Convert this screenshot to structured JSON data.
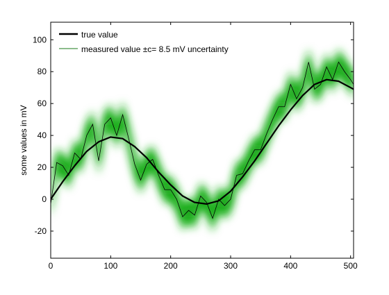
{
  "chart_data": {
    "type": "line",
    "title": "",
    "xlabel": "",
    "ylabel": "some values in mV",
    "xlim": [
      0,
      505
    ],
    "ylim": [
      -37,
      111
    ],
    "xticks": [
      0,
      100,
      200,
      300,
      400,
      500
    ],
    "yticks": [
      -20,
      0,
      20,
      40,
      60,
      80,
      100
    ],
    "grid": false,
    "legend_position": "top-left",
    "uncertainty_c": 8.5,
    "series": [
      {
        "name": "true value",
        "color": "#000000",
        "style": "thick-line",
        "x": [
          0,
          20,
          40,
          60,
          80,
          100,
          120,
          140,
          160,
          180,
          200,
          220,
          240,
          260,
          280,
          300,
          320,
          340,
          360,
          380,
          400,
          420,
          440,
          460,
          480,
          500,
          505
        ],
        "y": [
          0,
          11,
          21,
          30,
          36,
          39,
          38,
          33,
          26,
          17,
          9,
          2,
          -2,
          -3,
          -1,
          5,
          14,
          24,
          35,
          46,
          56,
          65,
          72,
          75,
          74,
          70,
          69
        ]
      },
      {
        "name": "measured value ±c= 8.5 mV uncertainty",
        "color": "#000000",
        "band_color": "#1fb31f",
        "style": "thin-line-with-band",
        "x": [
          0,
          10,
          20,
          30,
          40,
          50,
          60,
          70,
          80,
          90,
          100,
          110,
          120,
          130,
          140,
          150,
          160,
          170,
          180,
          190,
          200,
          210,
          220,
          230,
          240,
          250,
          260,
          270,
          280,
          290,
          300,
          310,
          320,
          330,
          340,
          350,
          360,
          370,
          380,
          390,
          400,
          410,
          420,
          430,
          440,
          450,
          460,
          470,
          480,
          490,
          500,
          505
        ],
        "y": [
          -3,
          23,
          21,
          15,
          29,
          25,
          40,
          47,
          24,
          47,
          51,
          40,
          53,
          38,
          22,
          12,
          22,
          25,
          15,
          6,
          6,
          0,
          -11,
          -7,
          -10,
          2,
          -2,
          -12,
          0,
          -4,
          0,
          15,
          16,
          24,
          31,
          31,
          41,
          50,
          58,
          58,
          72,
          63,
          70,
          86,
          69,
          72,
          83,
          75,
          86,
          80,
          75,
          72
        ]
      }
    ]
  }
}
